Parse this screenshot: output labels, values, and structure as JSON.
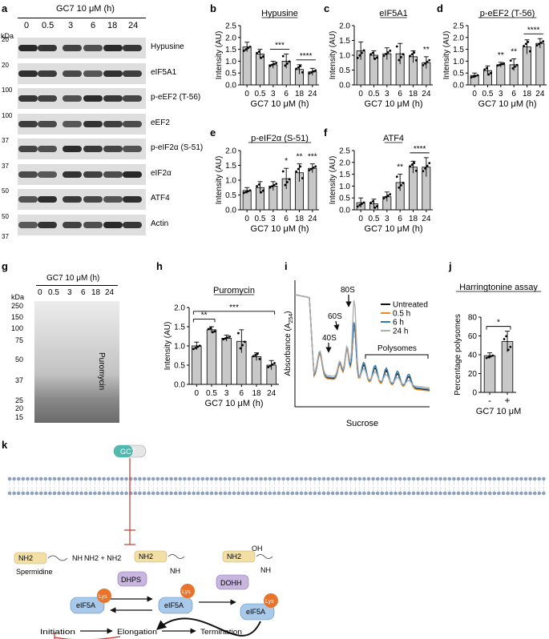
{
  "panel_letters": [
    "a",
    "b",
    "c",
    "d",
    "e",
    "f",
    "g",
    "h",
    "i",
    "j",
    "k"
  ],
  "blot_a": {
    "treatment": "GC7 10 μM (h)",
    "timepoints": [
      "0",
      "0.5",
      "3",
      "6",
      "18",
      "24"
    ],
    "kda_header": "kDa",
    "rows": [
      {
        "marker": "20",
        "label": "Hypusine"
      },
      {
        "marker": "20",
        "label": "eIF5A1"
      },
      {
        "marker": "100",
        "label": "p-eEF2 (T-56)"
      },
      {
        "marker": "100",
        "label": "eEF2"
      },
      {
        "marker": "37",
        "label": "p-eIF2α (S-51)"
      },
      {
        "marker": "37",
        "label": "eIF2α"
      },
      {
        "marker": "50",
        "label": "ATF4"
      },
      {
        "marker": "50",
        "label": "Actin"
      }
    ],
    "extra_marker": "37"
  },
  "blot_g": {
    "treatment": "GC7 10 μM (h)",
    "timepoints": [
      "0",
      "0.5",
      "3",
      "6",
      "18",
      "24"
    ],
    "kda_header": "kDa",
    "markers": [
      "250",
      "150",
      "100",
      "75",
      "50",
      "37",
      "25",
      "20",
      "15"
    ],
    "side_label": "Puromycin"
  },
  "chart_data": [
    {
      "id": "b",
      "type": "bar",
      "title": "Hypusine",
      "ylabel": "Intensity (AU)",
      "xlabel": "GC7 10 μM (h)",
      "categories": [
        "0",
        "0.5",
        "3",
        "6",
        "18",
        "24"
      ],
      "values": [
        1.6,
        1.3,
        0.85,
        1.0,
        0.65,
        0.55
      ],
      "errors": [
        0.2,
        0.2,
        0.15,
        0.3,
        0.2,
        0.15
      ],
      "ylim": [
        0,
        2.5
      ],
      "yticks": [
        "0.0",
        "0.5",
        "1.0",
        "1.5",
        "2.0",
        "2.5"
      ],
      "sig": [
        {
          "label": "***",
          "from": 2,
          "to": 3
        },
        {
          "label": "****",
          "from": 4,
          "to": 5
        }
      ]
    },
    {
      "id": "c",
      "type": "bar",
      "title": "eIF5A1",
      "ylabel": "Intensity (AU)",
      "xlabel": "GC7 10 μM (h)",
      "categories": [
        "0",
        "0.5",
        "3",
        "6",
        "18",
        "24"
      ],
      "values": [
        1.15,
        1.0,
        1.05,
        1.05,
        0.95,
        0.75
      ],
      "errors": [
        0.3,
        0.15,
        0.2,
        0.35,
        0.2,
        0.2
      ],
      "ylim": [
        0,
        2.0
      ],
      "yticks": [
        "0.0",
        "0.5",
        "1.0",
        "1.5",
        "2.0"
      ],
      "sig": [
        {
          "label": "**",
          "at": 5
        }
      ]
    },
    {
      "id": "d",
      "type": "bar",
      "title": "p-eEF2 (T-56)",
      "ylabel": "Intensity (AU)",
      "xlabel": "GC7 10 μM (h)",
      "categories": [
        "0",
        "0.5",
        "3",
        "6",
        "18",
        "24"
      ],
      "values": [
        0.4,
        0.6,
        0.85,
        0.85,
        1.6,
        1.75
      ],
      "errors": [
        0.1,
        0.2,
        0.1,
        0.25,
        0.3,
        0.2
      ],
      "ylim": [
        0,
        2.5
      ],
      "yticks": [
        "0.0",
        "0.5",
        "1.0",
        "1.5",
        "2.0",
        "2.5"
      ],
      "sig": [
        {
          "label": "**",
          "at": 2
        },
        {
          "label": "**",
          "at": 3
        },
        {
          "label": "****",
          "from": 4,
          "to": 5
        }
      ]
    },
    {
      "id": "e",
      "type": "bar",
      "title": "p-eIF2α (S-51)",
      "ylabel": "Intensity (AU)",
      "xlabel": "GC7 10 μM (h)",
      "categories": [
        "0",
        "0.5",
        "3",
        "6",
        "18",
        "24"
      ],
      "values": [
        0.65,
        0.75,
        0.8,
        1.05,
        1.25,
        1.4
      ],
      "errors": [
        0.1,
        0.2,
        0.15,
        0.35,
        0.3,
        0.15
      ],
      "ylim": [
        0,
        2.0
      ],
      "yticks": [
        "0.0",
        "0.5",
        "1.0",
        "1.5",
        "2.0"
      ],
      "sig": [
        {
          "label": "*",
          "at": 3
        },
        {
          "label": "**",
          "at": 4
        },
        {
          "label": "***",
          "at": 5
        }
      ]
    },
    {
      "id": "f",
      "type": "bar",
      "title": "ATF4",
      "ylabel": "Intensity (AU)",
      "xlabel": "GC7 10 μM (h)",
      "categories": [
        "0",
        "0.5",
        "3",
        "6",
        "18",
        "24"
      ],
      "values": [
        0.3,
        0.25,
        0.55,
        1.15,
        1.8,
        1.8
      ],
      "errors": [
        0.2,
        0.2,
        0.2,
        0.35,
        0.25,
        0.4
      ],
      "ylim": [
        0,
        2.5
      ],
      "yticks": [
        "0.0",
        "0.5",
        "1.0",
        "1.5",
        "2.0",
        "2.5"
      ],
      "sig": [
        {
          "label": "**",
          "at": 3
        },
        {
          "label": "****",
          "from": 4,
          "to": 5
        }
      ]
    },
    {
      "id": "h",
      "type": "bar",
      "title": "Puromycin",
      "ylabel": "Intensity (AU)",
      "xlabel": "GC7 10 μM (h)",
      "categories": [
        "0",
        "0.5",
        "3",
        "6",
        "18",
        "24"
      ],
      "values": [
        1.0,
        1.42,
        1.2,
        1.12,
        0.72,
        0.5
      ],
      "errors": [
        0.1,
        0.08,
        0.08,
        0.3,
        0.1,
        0.12
      ],
      "ylim": [
        0,
        2.0
      ],
      "yticks": [
        "0.0",
        "0.5",
        "1.0",
        "1.5",
        "2.0"
      ],
      "sig": [
        {
          "label": "**",
          "from": 0,
          "to": 1
        },
        {
          "label": "***",
          "from": 0,
          "to": 5
        }
      ]
    },
    {
      "id": "i",
      "type": "line",
      "xlabel": "Sucrose",
      "ylabel_main": "Absorbance (A",
      "ylabel_sub": "254",
      "ylabel_end": ")",
      "series": [
        {
          "name": "Untreated",
          "color": "#111111"
        },
        {
          "name": "0.5 h",
          "color": "#f28a1e"
        },
        {
          "name": "6 h",
          "color": "#2b7bb9"
        },
        {
          "name": "24 h",
          "color": "#b0b0b0"
        }
      ],
      "annotations": [
        "40S",
        "60S",
        "80S",
        "Polysomes"
      ]
    },
    {
      "id": "j",
      "type": "bar",
      "title": "Harringtonine assay",
      "ylabel": "Percentage polysomes",
      "xlabel": "GC7 10 μM",
      "categories": [
        "-",
        "+"
      ],
      "values": [
        39,
        54
      ],
      "errors": [
        3,
        11
      ],
      "ylim": [
        0,
        80
      ],
      "yticks": [
        "0",
        "20",
        "40",
        "60",
        "80"
      ],
      "sig": [
        {
          "label": "*",
          "from": 0,
          "to": 1
        }
      ]
    }
  ],
  "diagram_k": {
    "drug": "GC7",
    "spermidine_label": "Spermidine",
    "nh2_1": "NH2",
    "nh_chain": "NH",
    "nh2_plus": "NH2 + NH2",
    "nh2_2": "NH2",
    "nh_2": "NH",
    "nh2_3": "NH2",
    "oh": "OH",
    "nh_3": "NH",
    "enzyme_1": "DHPS",
    "enzyme_2": "DOHH",
    "protein": "eIF5A",
    "lys": "Lys",
    "initiation": "Initiation",
    "elongation": "Elongation",
    "termination": "Termination"
  },
  "colors": {
    "bar": "#c8c8c8",
    "blot_bg": "#dcdcdc",
    "band": "#2a2a2a",
    "membrane": "#8da1bd",
    "protein": "#a9c9ea",
    "enzyme": "#c9b6e0",
    "lys": "#e8732c",
    "spermidine": "#f2dfa5",
    "drug": "#4fb8b0",
    "inhibit": "#c0392b"
  }
}
